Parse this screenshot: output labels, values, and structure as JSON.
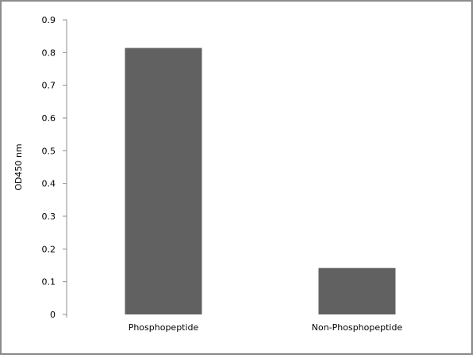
{
  "chart_data": {
    "type": "bar",
    "categories": [
      "Phosphopeptide",
      "Non-Phosphopeptide"
    ],
    "values": [
      0.814,
      0.142
    ],
    "title": "",
    "xlabel": "",
    "ylabel": "OD450 nm",
    "ylim": [
      0,
      0.9
    ],
    "yticks": [
      "0",
      "0.1",
      "0.2",
      "0.3",
      "0.4",
      "0.5",
      "0.6",
      "0.7",
      "0.8",
      "0.9"
    ],
    "grid": false,
    "bar_color": "#616161"
  }
}
